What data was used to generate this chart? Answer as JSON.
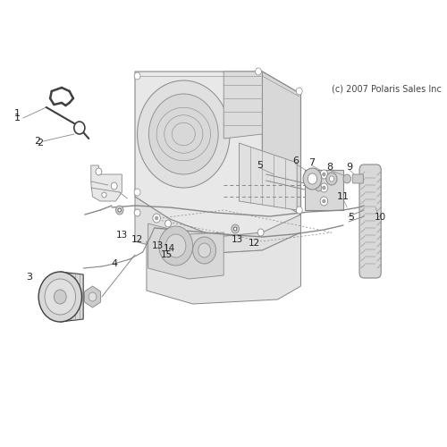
{
  "background_color": "#ffffff",
  "copyright_text": "(c) 2007 Polaris Sales Inc",
  "line_color": "#888888",
  "dark_line": "#404040",
  "very_light": "#e8e8e8",
  "light_gray": "#cccccc",
  "medium_gray": "#aaaaaa"
}
